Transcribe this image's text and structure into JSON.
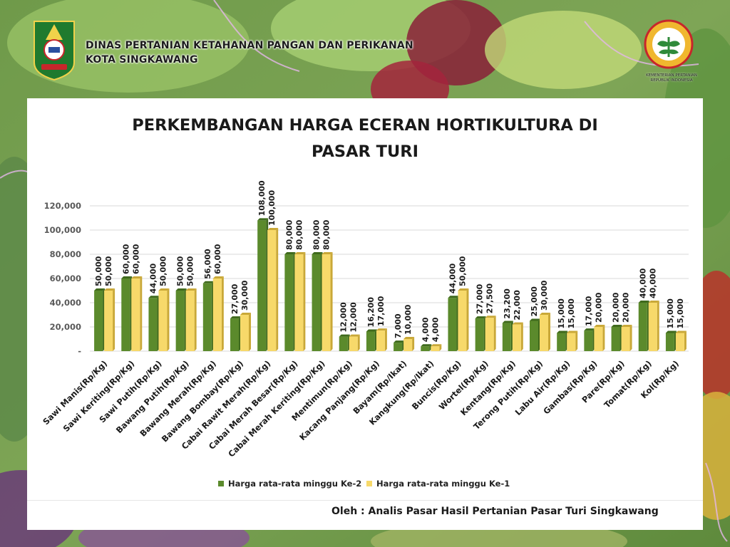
{
  "header": {
    "line1": "DINAS PERTANIAN KETAHANAN PANGAN DAN PERIKANAN",
    "line2": "KOTA SINGKAWANG"
  },
  "ministry_label": {
    "line1": "KEMENTERIAN PERTANIAN",
    "line2": "REPUBLIK INDONESIA"
  },
  "credit": "Oleh : Analis Pasar Hasil Pertanian Pasar Turi Singkawang",
  "colors": {
    "series1": "#5b8a2c",
    "series1_dark": "#3f6a1c",
    "series2": "#f7d96a",
    "series2_dark": "#c9a838",
    "grid": "#d9d9d9",
    "axis_text": "#595959"
  },
  "chart_data": {
    "type": "bar",
    "title_line1": "PERKEMBANGAN HARGA ECERAN HORTIKULTURA DI",
    "title_line2": "PASAR TURI",
    "ylim": [
      0,
      120000
    ],
    "yticks": [
      "-",
      "20,000",
      "40,000",
      "60,000",
      "80,000",
      "100,000",
      "120,000"
    ],
    "grid": true,
    "legend_position": "bottom",
    "categories": [
      "Sawi Manis(Rp/Kg)",
      "Sawi Keriting(Rp/Kg)",
      "Sawi Putih(Rp/Kg)",
      "Bawang Putih(Rp/Kg)",
      "Bawang Merah(Rp/Kg)",
      "Bawang Bombay(Rp/Kg)",
      "Cabai Rawit Merah(Rp/Kg)",
      "Cabai Merah Besar(Rp/Kg)",
      "Cabai Merah Keriting(Rp/Kg)",
      "Mentimun(Rp/Kg)",
      "Kacang Panjang(Rp/Kg)",
      "Bayam(Rp/Ikat)",
      "Kangkung(Rp/Ikat)",
      "Buncis(Rp/Kg)",
      "Wortel(Rp/Kg)",
      "Kentang(Rp/Kg)",
      "Terong Putih(Rp/Kg)",
      "Labu Air(Rp/Kg)",
      "Gambas(Rp/Kg)",
      "Pare(Rp/Kg)",
      "Tomat(Rp/Kg)",
      "Kol(Rp/Kg)"
    ],
    "series": [
      {
        "name": "Harga rata-rata minggu Ke-2",
        "values": [
          50000,
          60000,
          44000,
          50000,
          56000,
          27000,
          108000,
          80000,
          80000,
          12000,
          16200,
          7000,
          4000,
          44000,
          27000,
          23200,
          25000,
          15000,
          17000,
          20000,
          40000,
          15000
        ],
        "labels": [
          "50,000",
          "60,000",
          "44,000",
          "50,000",
          "56,000",
          "27,000",
          "108,000",
          "80,000",
          "80,000",
          "12,000",
          "16,200",
          "7,000",
          "4,000",
          "44,000",
          "27,000",
          "23,200",
          "25,000",
          "15,000",
          "17,000",
          "20,000",
          "40,000",
          "15,000"
        ]
      },
      {
        "name": "Harga rata-rata minggu Ke-1",
        "values": [
          50000,
          60000,
          50000,
          50000,
          60000,
          30000,
          100000,
          80000,
          80000,
          12000,
          17000,
          10000,
          4000,
          50000,
          27500,
          22000,
          30000,
          15000,
          20000,
          20000,
          40000,
          15000
        ],
        "labels": [
          "50,000",
          "60,000",
          "50,000",
          "50,000",
          "60,000",
          "30,000",
          "100,000",
          "80,000",
          "80,000",
          "12,000",
          "17,000",
          "10,000",
          "4,000",
          "50,000",
          "27,500",
          "22,000",
          "30,000",
          "15,000",
          "20,000",
          "20,000",
          "40,000",
          "15,000"
        ]
      }
    ]
  }
}
